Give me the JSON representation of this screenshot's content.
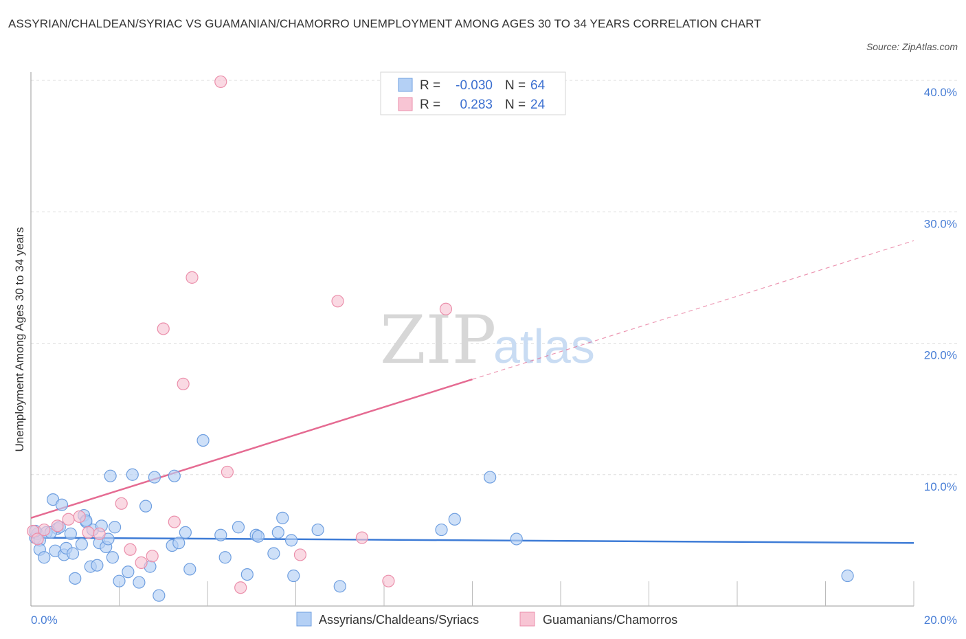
{
  "title": "ASSYRIAN/CHALDEAN/SYRIAC VS GUAMANIAN/CHAMORRO UNEMPLOYMENT AMONG AGES 30 TO 34 YEARS CORRELATION CHART",
  "source": "Source: ZipAtlas.com",
  "watermark": {
    "zip": "ZIP",
    "atlas": "atlas"
  },
  "legend": {
    "r_label": "R =",
    "n_label": "N =",
    "rows": [
      {
        "series": "Assyrians/Chaldeans/Syriacs",
        "r": "-0.030",
        "n": "64"
      },
      {
        "series": "Guamanians/Chamorros",
        "r": "0.283",
        "n": "24"
      }
    ]
  },
  "colors": {
    "blue_fill": "#b4d0f5",
    "blue_stroke": "#6f9fe0",
    "blue_line": "#3d7bd6",
    "pink_fill": "#f8c5d4",
    "pink_stroke": "#eb8fab",
    "pink_line": "#e56b92",
    "grid": "#dddddd",
    "tick_text": "#4a7fd6"
  },
  "chart_data": {
    "type": "scatter",
    "title": "ASSYRIAN/CHALDEAN/SYRIAC VS GUAMANIAN/CHAMORRO UNEMPLOYMENT AMONG AGES 30 TO 34 YEARS CORRELATION CHART",
    "xlabel": "",
    "ylabel": "Unemployment Among Ages 30 to 34 years",
    "xlim": [
      0,
      20
    ],
    "ylim": [
      0,
      40
    ],
    "x_tick_labels": [
      "0.0%",
      "20.0%"
    ],
    "y_ticks": [
      10,
      20,
      30,
      40
    ],
    "y_tick_labels": [
      "10.0%",
      "20.0%",
      "30.0%",
      "40.0%"
    ],
    "grid": true,
    "series": [
      {
        "name": "Assyrians/Chaldeans/Syriacs",
        "color": "#6f9fe0",
        "trend": {
          "x": [
            0,
            20
          ],
          "y": [
            5.2,
            4.8
          ],
          "dashed_from": null
        },
        "points": [
          [
            0.1,
            5.2
          ],
          [
            0.15,
            5.5
          ],
          [
            0.2,
            5.0
          ],
          [
            0.2,
            4.3
          ],
          [
            0.3,
            3.7
          ],
          [
            0.35,
            5.6
          ],
          [
            0.5,
            8.1
          ],
          [
            0.55,
            4.2
          ],
          [
            0.6,
            5.9
          ],
          [
            0.7,
            7.7
          ],
          [
            0.75,
            3.9
          ],
          [
            0.8,
            4.4
          ],
          [
            0.9,
            5.5
          ],
          [
            0.95,
            4.0
          ],
          [
            1.0,
            2.1
          ],
          [
            1.15,
            4.7
          ],
          [
            1.2,
            6.9
          ],
          [
            1.25,
            6.4
          ],
          [
            1.35,
            3.0
          ],
          [
            1.4,
            5.8
          ],
          [
            1.5,
            3.1
          ],
          [
            1.55,
            4.8
          ],
          [
            1.6,
            6.1
          ],
          [
            1.7,
            4.5
          ],
          [
            1.75,
            5.1
          ],
          [
            1.8,
            9.9
          ],
          [
            1.85,
            3.7
          ],
          [
            1.9,
            6.0
          ],
          [
            2.0,
            1.9
          ],
          [
            2.2,
            2.6
          ],
          [
            2.3,
            10.0
          ],
          [
            2.45,
            1.8
          ],
          [
            2.6,
            7.6
          ],
          [
            2.7,
            3.0
          ],
          [
            2.8,
            9.8
          ],
          [
            2.9,
            0.8
          ],
          [
            3.2,
            4.6
          ],
          [
            3.25,
            9.9
          ],
          [
            3.35,
            4.8
          ],
          [
            3.5,
            5.6
          ],
          [
            3.6,
            2.8
          ],
          [
            3.9,
            12.6
          ],
          [
            4.3,
            5.4
          ],
          [
            4.4,
            3.7
          ],
          [
            4.7,
            6.0
          ],
          [
            4.9,
            2.4
          ],
          [
            5.1,
            5.4
          ],
          [
            5.15,
            5.3
          ],
          [
            5.5,
            4.0
          ],
          [
            5.6,
            5.6
          ],
          [
            5.7,
            6.7
          ],
          [
            5.9,
            5.0
          ],
          [
            5.95,
            2.3
          ],
          [
            6.5,
            5.8
          ],
          [
            7.0,
            1.5
          ],
          [
            9.3,
            5.8
          ],
          [
            9.6,
            6.6
          ],
          [
            10.4,
            9.8
          ],
          [
            11.0,
            5.1
          ],
          [
            18.5,
            2.3
          ],
          [
            0.1,
            5.7
          ],
          [
            0.45,
            5.6
          ],
          [
            1.25,
            6.5
          ],
          [
            0.65,
            6.0
          ]
        ]
      },
      {
        "name": "Guamanians/Chamorros",
        "color": "#eb8fab",
        "trend": {
          "x": [
            0,
            20
          ],
          "y": [
            6.7,
            27.8
          ],
          "dashed_from": 10
        },
        "points": [
          [
            0.05,
            5.7
          ],
          [
            0.15,
            5.1
          ],
          [
            0.3,
            5.8
          ],
          [
            0.6,
            6.1
          ],
          [
            0.85,
            6.6
          ],
          [
            1.1,
            6.8
          ],
          [
            1.3,
            5.6
          ],
          [
            1.55,
            5.5
          ],
          [
            2.05,
            7.8
          ],
          [
            2.25,
            4.3
          ],
          [
            2.5,
            3.3
          ],
          [
            2.75,
            3.8
          ],
          [
            3.0,
            21.1
          ],
          [
            3.25,
            6.4
          ],
          [
            3.45,
            16.9
          ],
          [
            3.65,
            25.0
          ],
          [
            4.3,
            39.9
          ],
          [
            4.45,
            10.2
          ],
          [
            4.75,
            1.4
          ],
          [
            6.1,
            3.9
          ],
          [
            6.95,
            23.2
          ],
          [
            7.5,
            5.2
          ],
          [
            8.1,
            1.9
          ],
          [
            9.4,
            22.6
          ]
        ]
      }
    ]
  }
}
